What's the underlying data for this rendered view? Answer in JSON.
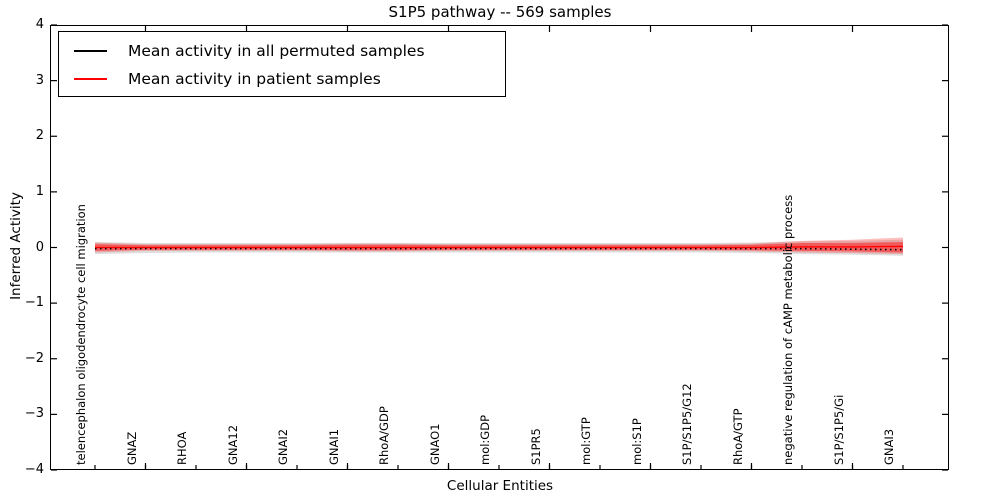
{
  "title": "S1P5 pathway -- 569 samples",
  "legend": {
    "items": [
      {
        "label": "Mean activity in all permuted samples",
        "color": "#000000"
      },
      {
        "label": "Mean activity in patient samples",
        "color": "#ff0000"
      }
    ]
  },
  "colors": {
    "permuted_line": "#000000",
    "patient_line": "#ff0000",
    "permuted_band": "rgba(0,0,0,0.13)",
    "patient_band_outer": "rgba(255,0,0,0.25)",
    "patient_band_inner": "rgba(255,0,0,0.45)",
    "axis": "#000000",
    "background": "#ffffff"
  },
  "chart_data": {
    "type": "line",
    "title": "S1P5 pathway -- 569 samples",
    "xlabel": "Cellular Entities",
    "ylabel": "Inferred Activity",
    "ylim": [
      -4,
      4
    ],
    "yticks": [
      4,
      3,
      2,
      1,
      0,
      -1,
      -2,
      -3,
      -4
    ],
    "grid": false,
    "legend_position": "upper left",
    "categories": [
      "telencephalon oligodendrocyte cell migration",
      "GNAZ",
      "RHOA",
      "GNA12",
      "GNAI2",
      "GNAI1",
      "RhoA/GDP",
      "GNAO1",
      "mol:GDP",
      "S1PR5",
      "mol:GTP",
      "mol:S1P",
      "S1P/S1P5/G12",
      "RhoA/GTP",
      "negative regulation of cAMP metabolic process",
      "S1P/S1P5/Gi",
      "GNAI3"
    ],
    "series": [
      {
        "name": "Mean activity in all permuted samples",
        "style": "dotted",
        "color": "#000000",
        "values": [
          -0.02,
          -0.02,
          -0.02,
          -0.02,
          -0.02,
          -0.02,
          -0.02,
          -0.02,
          -0.02,
          -0.02,
          -0.02,
          -0.02,
          -0.02,
          -0.02,
          -0.02,
          -0.03,
          -0.04
        ]
      },
      {
        "name": "Mean activity in patient samples",
        "style": "solid",
        "color": "#ff0000",
        "values": [
          0,
          0,
          0,
          0,
          0,
          0,
          0,
          0,
          0,
          0,
          0,
          0,
          0,
          0,
          0.01,
          0.01,
          0.02
        ]
      }
    ],
    "bands": [
      {
        "name": "permuted-samples-spread",
        "color": "rgba(0,0,0,0.13)",
        "upper": [
          0.1,
          0.08,
          0.08,
          0.08,
          0.08,
          0.08,
          0.08,
          0.08,
          0.08,
          0.08,
          0.08,
          0.08,
          0.08,
          0.09,
          0.11,
          0.12,
          0.14
        ],
        "lower": [
          -0.12,
          -0.1,
          -0.09,
          -0.09,
          -0.09,
          -0.09,
          -0.09,
          -0.09,
          -0.09,
          -0.09,
          -0.09,
          -0.09,
          -0.09,
          -0.1,
          -0.12,
          -0.13,
          -0.15
        ]
      },
      {
        "name": "patient-samples-spread-outer",
        "color": "rgba(255,0,0,0.25)",
        "upper": [
          0.09,
          0.06,
          0.06,
          0.06,
          0.06,
          0.07,
          0.07,
          0.06,
          0.06,
          0.06,
          0.06,
          0.06,
          0.06,
          0.07,
          0.12,
          0.14,
          0.18
        ],
        "lower": [
          -0.09,
          -0.06,
          -0.06,
          -0.06,
          -0.06,
          -0.07,
          -0.07,
          -0.06,
          -0.06,
          -0.06,
          -0.06,
          -0.06,
          -0.06,
          -0.07,
          -0.09,
          -0.1,
          -0.12
        ]
      },
      {
        "name": "patient-samples-spread-inner",
        "color": "rgba(255,0,0,0.45)",
        "upper": [
          0.06,
          0.04,
          0.04,
          0.04,
          0.04,
          0.05,
          0.05,
          0.04,
          0.04,
          0.04,
          0.04,
          0.04,
          0.04,
          0.05,
          0.08,
          0.08,
          0.1
        ],
        "lower": [
          -0.06,
          -0.04,
          -0.04,
          -0.04,
          -0.04,
          -0.05,
          -0.05,
          -0.04,
          -0.04,
          -0.04,
          -0.04,
          -0.04,
          -0.04,
          -0.05,
          -0.06,
          -0.07,
          -0.09
        ]
      }
    ]
  }
}
